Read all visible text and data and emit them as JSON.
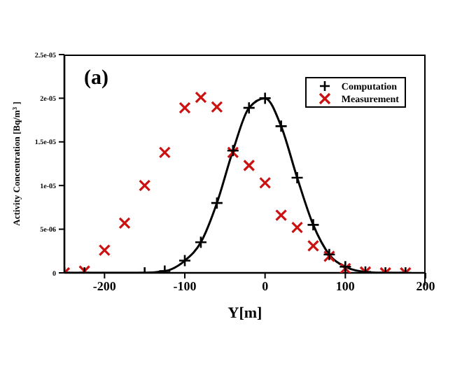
{
  "chart_data": {
    "type": "line",
    "xlabel": "Y[m]",
    "ylabel": "Activity Concentration [Bq/m$^{3}$]",
    "annotations": [
      "(a)"
    ],
    "xlim": [
      -250,
      200
    ],
    "xticks": [
      -200,
      -100,
      0,
      100,
      200
    ],
    "ylim": [
      0,
      2.5e-05
    ],
    "yticks": [
      {
        "value": 0,
        "label": "0"
      },
      {
        "value": 5e-06,
        "label": "5e-06"
      },
      {
        "value": 1e-05,
        "label": "1e-05"
      },
      {
        "value": 1.5e-05,
        "label": "1.5e-05"
      },
      {
        "value": 2e-05,
        "label": "2e-05"
      },
      {
        "value": 2.5e-05,
        "label": "2.5e-05"
      }
    ],
    "legend": "top right",
    "series": [
      {
        "name": "Computation",
        "marker": "plus",
        "line_style": "solid",
        "color": "#000000",
        "x": [
          -250,
          -225,
          -150,
          -125,
          -100,
          -80,
          -60,
          -40,
          -20,
          0,
          20,
          40,
          60,
          80,
          100,
          125,
          150,
          175
        ],
        "values": [
          0,
          0,
          0,
          2e-07,
          1.4e-06,
          3.5e-06,
          8e-06,
          1.4e-05,
          1.89e-05,
          2e-05,
          1.68e-05,
          1.09e-05,
          5.5e-06,
          2.1e-06,
          7e-07,
          1e-07,
          0,
          0
        ]
      },
      {
        "name": "Measurement",
        "type": "scatter",
        "marker": "cross",
        "color": "#cc1111",
        "x": [
          -250,
          -225,
          -200,
          -175,
          -150,
          -125,
          -100,
          -80,
          -60,
          -40,
          -20,
          0,
          20,
          40,
          60,
          80,
          100,
          125,
          150,
          175
        ],
        "values": [
          0,
          2e-07,
          2.6e-06,
          5.7e-06,
          1e-05,
          1.38e-05,
          1.89e-05,
          2.01e-05,
          1.9e-05,
          1.38e-05,
          1.23e-05,
          1.03e-05,
          6.6e-06,
          5.2e-06,
          3.1e-06,
          1.9e-06,
          5e-07,
          1e-07,
          0,
          0
        ]
      }
    ]
  }
}
